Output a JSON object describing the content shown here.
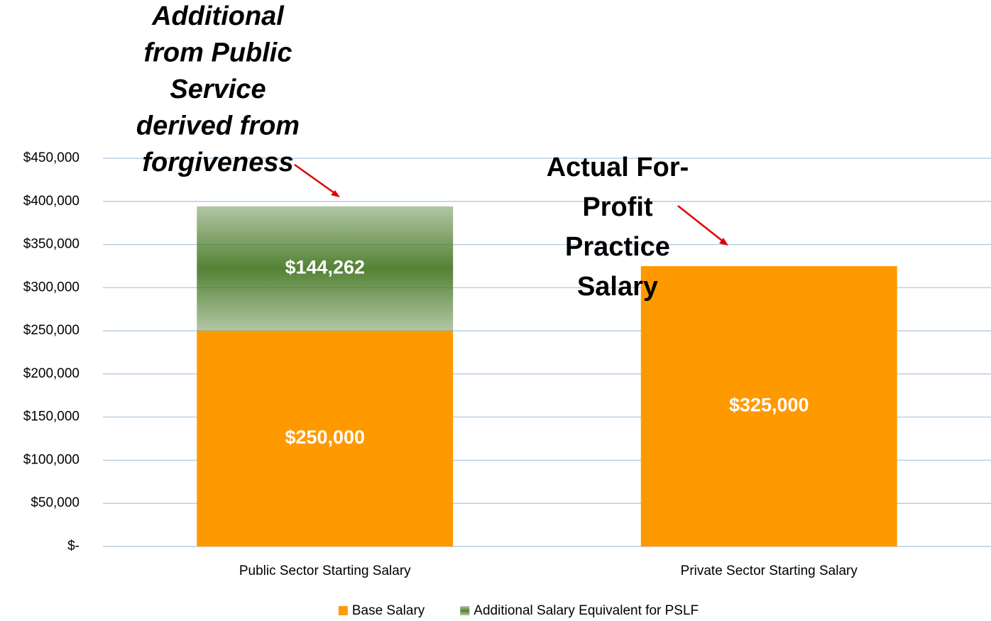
{
  "chart_data": {
    "type": "stacked_bar",
    "categories": [
      "Public Sector Starting Salary",
      "Private Sector Starting Salary"
    ],
    "series": [
      {
        "name": "Base Salary",
        "color": "#ff9900",
        "values": [
          250000,
          325000
        ],
        "value_labels": [
          "$250,000",
          "$325,000"
        ]
      },
      {
        "name": "Additional Salary Equivalent for PSLF",
        "color": "#548235",
        "values": [
          144262,
          null
        ],
        "value_labels": [
          "$144,262",
          null
        ]
      }
    ],
    "ylim": [
      0,
      450000
    ],
    "yticks": [
      {
        "value": 0,
        "label": "$-"
      },
      {
        "value": 50000,
        "label": "$50,000"
      },
      {
        "value": 100000,
        "label": "$100,000"
      },
      {
        "value": 150000,
        "label": "$150,000"
      },
      {
        "value": 200000,
        "label": "$200,000"
      },
      {
        "value": 250000,
        "label": "$250,000"
      },
      {
        "value": 300000,
        "label": "$300,000"
      },
      {
        "value": 350000,
        "label": "$350,000"
      },
      {
        "value": 400000,
        "label": "$400,000"
      },
      {
        "value": 450000,
        "label": "$450,000"
      }
    ],
    "grid": true,
    "legend": "bottom",
    "annotations": [
      {
        "lines": [
          "Additional",
          "from Public",
          "Service",
          "derived from",
          "forgiveness"
        ]
      },
      {
        "lines": [
          "Actual For-",
          "Profit",
          "Practice",
          "Salary"
        ]
      }
    ]
  }
}
